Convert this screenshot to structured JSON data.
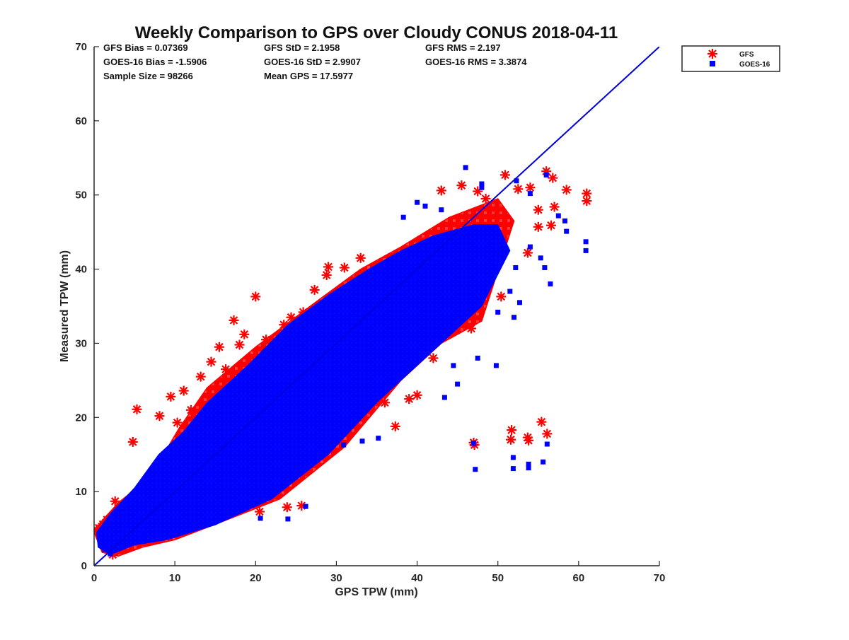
{
  "chart_data": {
    "type": "scatter",
    "title": "Weekly Comparison to GPS over Cloudy CONUS 2018-04-11",
    "xlabel": "GPS TPW (mm)",
    "ylabel": "Measured TPW (mm)",
    "xlim": [
      0,
      70
    ],
    "ylim": [
      0,
      70
    ],
    "xticks": [
      "0",
      "10",
      "20",
      "30",
      "40",
      "50",
      "60",
      "70"
    ],
    "yticks": [
      "0",
      "10",
      "20",
      "30",
      "40",
      "50",
      "60",
      "70"
    ],
    "grid": false,
    "legend_position": "outside top-right",
    "stats": [
      "GFS Bias = 0.07369",
      "GFS StD = 2.1958",
      "GFS RMS = 2.197",
      "GOES-16 Bias = -1.5906",
      "GOES-16 StD = 2.9907",
      "GOES-16 RMS = 3.3874",
      "Sample Size = 98266",
      "Mean GPS = 17.5977"
    ],
    "reference_line": {
      "x": [
        0,
        70
      ],
      "y": [
        0,
        70
      ],
      "color": "#0000dd"
    },
    "series": [
      {
        "name": "GFS",
        "marker": "asterisk",
        "color": "#ff0000",
        "cloud": [
          [
            0,
            4.5
          ],
          [
            0.5,
            5.5
          ],
          [
            3,
            8.5
          ],
          [
            7,
            12
          ],
          [
            10.5,
            18.5
          ],
          [
            14,
            24
          ],
          [
            20,
            29.5
          ],
          [
            28,
            36
          ],
          [
            33,
            40
          ],
          [
            38,
            43
          ],
          [
            44,
            47
          ],
          [
            50,
            49.5
          ],
          [
            52,
            46.5
          ],
          [
            48,
            33
          ],
          [
            43,
            30
          ],
          [
            38,
            25
          ],
          [
            31,
            16
          ],
          [
            23,
            9
          ],
          [
            16,
            6
          ],
          [
            10,
            3.5
          ],
          [
            6,
            2.5
          ],
          [
            3,
            1.3
          ],
          [
            1,
            1.8
          ]
        ],
        "points": [
          [
            0.3,
            4.8
          ],
          [
            0.6,
            5.1
          ],
          [
            1.1,
            5.6
          ],
          [
            1.6,
            6.2
          ],
          [
            2.6,
            8.7
          ],
          [
            4.8,
            16.7
          ],
          [
            5.3,
            21.1
          ],
          [
            8.1,
            20.2
          ],
          [
            9.5,
            22.8
          ],
          [
            10.3,
            19.3
          ],
          [
            11.1,
            23.6
          ],
          [
            12.0,
            21.0
          ],
          [
            13.2,
            25.5
          ],
          [
            14.5,
            27.5
          ],
          [
            15.5,
            29.5
          ],
          [
            16.3,
            26.5
          ],
          [
            17.3,
            33.1
          ],
          [
            18.0,
            29.8
          ],
          [
            18.6,
            31.2
          ],
          [
            19.4,
            27.4
          ],
          [
            20.0,
            36.3
          ],
          [
            21.3,
            30.5
          ],
          [
            23.5,
            32.5
          ],
          [
            24.4,
            33.5
          ],
          [
            25.9,
            34.2
          ],
          [
            27.3,
            37.2
          ],
          [
            29.0,
            40.3
          ],
          [
            28.8,
            39.2
          ],
          [
            31.0,
            40.2
          ],
          [
            33.0,
            41.5
          ],
          [
            20.5,
            7.3
          ],
          [
            23.9,
            7.9
          ],
          [
            25.7,
            8.1
          ],
          [
            16.0,
            11.0
          ],
          [
            12.0,
            5.3
          ],
          [
            2.3,
            1.5
          ],
          [
            37.3,
            18.8
          ],
          [
            36.0,
            22.0
          ],
          [
            40.0,
            23.0
          ],
          [
            39.0,
            22.5
          ],
          [
            42.0,
            28.0
          ],
          [
            45.0,
            32.5
          ],
          [
            45.9,
            34.6
          ],
          [
            46.7,
            32.0
          ],
          [
            50.4,
            36.3
          ],
          [
            43.0,
            50.6
          ],
          [
            45.5,
            51.3
          ],
          [
            47.5,
            50.5
          ],
          [
            48.5,
            49.5
          ],
          [
            50.9,
            52.7
          ],
          [
            52.5,
            50.8
          ],
          [
            54.0,
            51.0
          ],
          [
            55.0,
            48.0
          ],
          [
            56.0,
            53.2
          ],
          [
            56.8,
            52.3
          ],
          [
            57.0,
            48.4
          ],
          [
            58.5,
            50.7
          ],
          [
            61.0,
            50.2
          ],
          [
            61.0,
            49.2
          ],
          [
            53.7,
            42.2
          ],
          [
            55.0,
            45.7
          ],
          [
            56.6,
            45.9
          ],
          [
            47.0,
            16.6
          ],
          [
            47.1,
            16.3
          ],
          [
            51.7,
            18.3
          ],
          [
            51.6,
            17.0
          ],
          [
            53.7,
            17.3
          ],
          [
            53.8,
            16.9
          ],
          [
            55.4,
            19.4
          ],
          [
            56.1,
            17.8
          ]
        ]
      },
      {
        "name": "GOES-16",
        "marker": "square",
        "color": "#0000ff",
        "cloud": [
          [
            0.5,
            2.5
          ],
          [
            0.3,
            4.5
          ],
          [
            2,
            7
          ],
          [
            5,
            10.5
          ],
          [
            8,
            15
          ],
          [
            11,
            18
          ],
          [
            14,
            22
          ],
          [
            19,
            27
          ],
          [
            24,
            32.5
          ],
          [
            29,
            36.5
          ],
          [
            34,
            40
          ],
          [
            38,
            42.5
          ],
          [
            42,
            44.5
          ],
          [
            47,
            46
          ],
          [
            50,
            46
          ],
          [
            51.5,
            42.5
          ],
          [
            48,
            35
          ],
          [
            44,
            31
          ],
          [
            40,
            27
          ],
          [
            35,
            22
          ],
          [
            29,
            15
          ],
          [
            22,
            9
          ],
          [
            15,
            5.5
          ],
          [
            9,
            3.5
          ],
          [
            5,
            2.8
          ],
          [
            2,
            1.5
          ]
        ],
        "points": [
          [
            1.3,
            2.2
          ],
          [
            2.0,
            1.6
          ],
          [
            6.0,
            4.0
          ],
          [
            24.0,
            6.3
          ],
          [
            20.6,
            6.4
          ],
          [
            26.2,
            8.0
          ],
          [
            30.9,
            16.3
          ],
          [
            33.2,
            16.8
          ],
          [
            35.2,
            17.2
          ],
          [
            43.4,
            22.7
          ],
          [
            45.0,
            24.5
          ],
          [
            44.5,
            27.0
          ],
          [
            47.5,
            28.0
          ],
          [
            49.8,
            27.0
          ],
          [
            52.0,
            33.5
          ],
          [
            50.0,
            34.2
          ],
          [
            51.5,
            37.0
          ],
          [
            52.7,
            35.5
          ],
          [
            52.2,
            40.2
          ],
          [
            38.3,
            47.0
          ],
          [
            40.0,
            49.0
          ],
          [
            41.0,
            48.5
          ],
          [
            43.0,
            48.0
          ],
          [
            46.0,
            53.7
          ],
          [
            48.0,
            51.5
          ],
          [
            48.0,
            51.0
          ],
          [
            52.3,
            51.9
          ],
          [
            54.0,
            50.2
          ],
          [
            56.0,
            52.7
          ],
          [
            57.5,
            47.2
          ],
          [
            58.5,
            45.1
          ],
          [
            58.3,
            46.5
          ],
          [
            60.9,
            43.7
          ],
          [
            60.9,
            42.5
          ],
          [
            55.8,
            40.2
          ],
          [
            55.3,
            41.5
          ],
          [
            56.5,
            38.0
          ],
          [
            54.0,
            43.0
          ],
          [
            47.0,
            16.5
          ],
          [
            47.2,
            13.0
          ],
          [
            51.9,
            13.1
          ],
          [
            51.9,
            14.6
          ],
          [
            53.8,
            13.2
          ],
          [
            53.8,
            13.7
          ],
          [
            55.6,
            14.0
          ],
          [
            56.1,
            16.4
          ]
        ]
      }
    ]
  }
}
